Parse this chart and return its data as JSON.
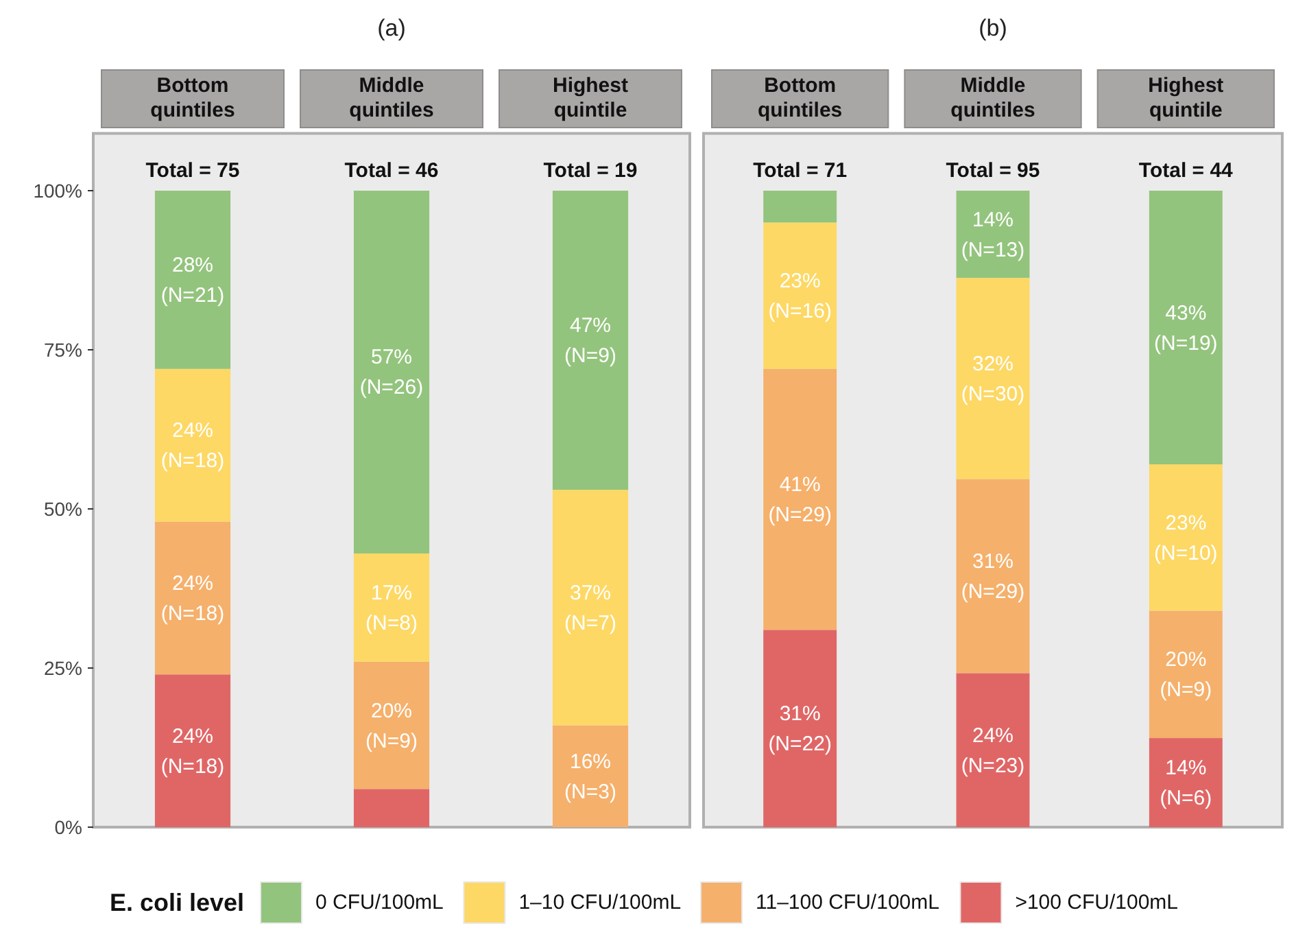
{
  "chart_data": [
    {
      "type": "bar",
      "title": "(a)",
      "stacked": true,
      "categories": [
        "Bottom quintiles",
        "Middle quintiles",
        "Highest quintile"
      ],
      "ylim": [
        0,
        109
      ],
      "yticks": [
        {
          "value": 0,
          "label": "0%"
        },
        {
          "value": 25,
          "label": "25%"
        },
        {
          "value": 50,
          "label": "50%"
        },
        {
          "value": 75,
          "label": "75%"
        },
        {
          "value": 100,
          "label": "100%"
        }
      ],
      "legend": "bottom",
      "legend_title": "E. coli level",
      "annotations": [
        {
          "text": "Total = 75",
          "x": "Bottom quintiles",
          "y": 100
        },
        {
          "text": "Total = 46",
          "x": "Middle quintiles",
          "y": 100
        },
        {
          "text": "Total = 19",
          "x": "Highest quintile",
          "y": 100
        }
      ],
      "series": [
        {
          "name": ">100 CFU/100mL",
          "color": "#e06666",
          "values": [
            24,
            6,
            0
          ],
          "value_labels": [
            "24%\n(N=18)",
            null,
            null
          ]
        },
        {
          "name": "11–100 CFU/100mL",
          "color": "#f5b06b",
          "values": [
            24,
            20,
            16
          ],
          "value_labels": [
            "24%\n(N=18)",
            "20%\n(N=9)",
            "16%\n(N=3)"
          ]
        },
        {
          "name": "1–10 CFU/100mL",
          "color": "#fdd865",
          "values": [
            24,
            17,
            37
          ],
          "value_labels": [
            "24%\n(N=18)",
            "17%\n(N=8)",
            "37%\n(N=7)"
          ]
        },
        {
          "name": "0 CFU/100mL",
          "color": "#93c47d",
          "values": [
            28,
            57,
            47
          ],
          "value_labels": [
            "28%\n(N=21)",
            "57%\n(N=26)",
            "47%\n(N=9)"
          ]
        }
      ]
    },
    {
      "type": "bar",
      "title": "(b)",
      "stacked": true,
      "categories": [
        "Bottom quintiles",
        "Middle quintiles",
        "Highest quintile"
      ],
      "ylim": [
        0,
        109
      ],
      "tick_labels": "x",
      "annotations": [
        {
          "text": "Total = 71",
          "x": "Bottom quintiles",
          "y": 100
        },
        {
          "text": "Total = 95",
          "x": "Middle quintiles",
          "y": 100
        },
        {
          "text": "Total = 44",
          "x": "Highest quintile",
          "y": 100
        }
      ],
      "series": [
        {
          "color": "#e06666",
          "values": [
            31,
            24.2,
            14
          ],
          "value_labels": [
            "31%\n(N=22)",
            "24%\n(N=23)",
            "14%\n(N=6)"
          ]
        },
        {
          "color": "#f5b06b",
          "values": [
            41,
            30.5,
            20
          ],
          "value_labels": [
            "41%\n(N=29)",
            "31%\n(N=29)",
            "20%\n(N=9)"
          ]
        },
        {
          "color": "#fdd865",
          "values": [
            23,
            31.6,
            23
          ],
          "value_labels": [
            "23%\n(N=16)",
            "32%\n(N=30)",
            "23%\n(N=10)"
          ]
        },
        {
          "color": "#93c47d",
          "values": [
            5,
            13.7,
            43
          ],
          "value_labels": [
            null,
            "14%\n(N=13)",
            "43%\n(N=19)"
          ]
        }
      ]
    }
  ]
}
